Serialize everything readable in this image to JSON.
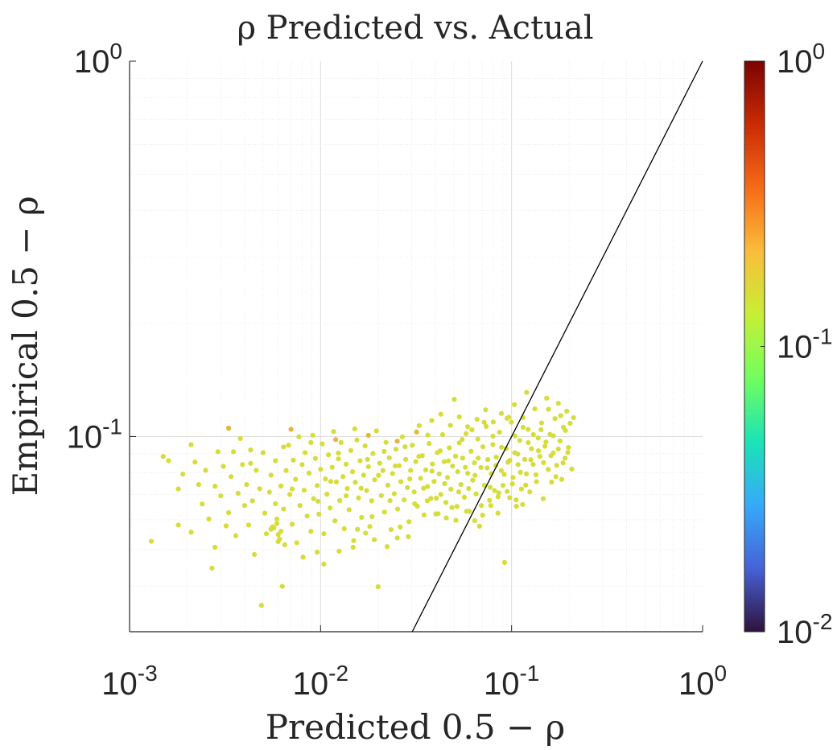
{
  "chart_data": {
    "type": "scatter",
    "title": "ρ Predicted vs. Actual",
    "xlabel": "Predicted 0.5 − ρ",
    "ylabel": "Empirical 0.5 − ρ",
    "x_scale": "log",
    "y_scale": "log",
    "xlim": [
      0.001,
      1
    ],
    "ylim": [
      0.0302,
      1
    ],
    "grid": true,
    "minor_grid": true,
    "x_ticks": [
      {
        "value": 0.001,
        "base": "10",
        "exp": "-3"
      },
      {
        "value": 0.01,
        "base": "10",
        "exp": "-2"
      },
      {
        "value": 0.1,
        "base": "10",
        "exp": "-1"
      },
      {
        "value": 1,
        "base": "10",
        "exp": "0"
      }
    ],
    "y_ticks": [
      {
        "value": 0.1,
        "base": "10",
        "exp": "-1"
      },
      {
        "value": 1,
        "base": "10",
        "exp": "0"
      }
    ],
    "reference_line": {
      "type": "y=x",
      "color": "#000000"
    },
    "point_color": "#d6dd3a",
    "point_color_alt": "#e8b43a",
    "colorbar": {
      "colormap": "turbo",
      "scale": "log",
      "range": [
        0.01,
        1
      ],
      "ticks": [
        {
          "value": 1,
          "base": "10",
          "exp": "0"
        },
        {
          "value": 0.1,
          "base": "10",
          "exp": "-1"
        },
        {
          "value": 0.01,
          "base": "10",
          "exp": "-2"
        }
      ],
      "stops": [
        "#30123b",
        "#4662d7",
        "#36aaf9",
        "#1ae4b6",
        "#72fe5e",
        "#c7ef34",
        "#fabd3a",
        "#f66b19",
        "#cb2a04",
        "#7a0403"
      ]
    },
    "points": [
      [
        0.0013,
        0.0526
      ],
      [
        0.0015,
        0.0885
      ],
      [
        0.0016,
        0.0862
      ],
      [
        0.0018,
        0.0725
      ],
      [
        0.0018,
        0.0581
      ],
      [
        0.0019,
        0.0794
      ],
      [
        0.0021,
        0.0951
      ],
      [
        0.0021,
        0.0556
      ],
      [
        0.0022,
        0.0855
      ],
      [
        0.0023,
        0.0745
      ],
      [
        0.0024,
        0.0661
      ],
      [
        0.0025,
        0.0813
      ],
      [
        0.0026,
        0.0603
      ],
      [
        0.0027,
        0.0446
      ],
      [
        0.0028,
        0.0507
      ],
      [
        0.0028,
        0.0737
      ],
      [
        0.0029,
        0.0911
      ],
      [
        0.003,
        0.0695
      ],
      [
        0.0031,
        0.0833
      ],
      [
        0.0032,
        0.0578
      ],
      [
        0.0033,
        0.1051
      ],
      [
        0.0033,
        0.0627
      ],
      [
        0.0034,
        0.0782
      ],
      [
        0.0035,
        0.0911
      ],
      [
        0.0036,
        0.0544
      ],
      [
        0.0037,
        0.0706
      ],
      [
        0.0038,
        0.0988
      ],
      [
        0.0039,
        0.0842
      ],
      [
        0.004,
        0.0655
      ],
      [
        0.0041,
        0.0745
      ],
      [
        0.0042,
        0.0581
      ],
      [
        0.0043,
        0.0921
      ],
      [
        0.0044,
        0.0674
      ],
      [
        0.0045,
        0.0485
      ],
      [
        0.0046,
        0.0813
      ],
      [
        0.0048,
        0.0726
      ],
      [
        0.0049,
        0.0355
      ],
      [
        0.005,
        0.0906
      ],
      [
        0.0051,
        0.0625
      ],
      [
        0.0052,
        0.0551
      ],
      [
        0.0054,
        0.0711
      ],
      [
        0.0055,
        0.0789
      ],
      [
        0.0056,
        0.0575
      ],
      [
        0.0058,
        0.0862
      ],
      [
        0.0059,
        0.0603
      ],
      [
        0.006,
        0.0525
      ],
      [
        0.0062,
        0.0738
      ],
      [
        0.0063,
        0.0399
      ],
      [
        0.0064,
        0.0641
      ],
      [
        0.0066,
        0.0812
      ],
      [
        0.0068,
        0.0948
      ],
      [
        0.0069,
        0.0701
      ],
      [
        0.0071,
        0.0584
      ],
      [
        0.0072,
        0.0865
      ],
      [
        0.0074,
        0.0769
      ],
      [
        0.0075,
        0.0521
      ],
      [
        0.0077,
        0.0998
      ],
      [
        0.0078,
        0.0655
      ],
      [
        0.008,
        0.0842
      ],
      [
        0.0082,
        0.0719
      ],
      [
        0.0083,
        0.0906
      ],
      [
        0.0085,
        0.0614
      ],
      [
        0.0087,
        0.0799
      ],
      [
        0.0089,
        0.0559
      ],
      [
        0.0091,
        0.1008
      ],
      [
        0.0092,
        0.0683
      ],
      [
        0.0094,
        0.0874
      ],
      [
        0.0096,
        0.074
      ],
      [
        0.0098,
        0.0621
      ],
      [
        0.01,
        0.0818
      ],
      [
        0.0102,
        0.0956
      ],
      [
        0.0104,
        0.0551
      ],
      [
        0.0106,
        0.0771
      ],
      [
        0.0108,
        0.0702
      ],
      [
        0.011,
        0.0894
      ],
      [
        0.0112,
        0.0645
      ],
      [
        0.0115,
        0.0828
      ],
      [
        0.0117,
        0.1031
      ],
      [
        0.0119,
        0.0596
      ],
      [
        0.0121,
        0.0757
      ],
      [
        0.0124,
        0.0872
      ],
      [
        0.0126,
        0.0675
      ],
      [
        0.0128,
        0.0964
      ],
      [
        0.0131,
        0.0782
      ],
      [
        0.0133,
        0.0568
      ],
      [
        0.0136,
        0.0844
      ],
      [
        0.0138,
        0.0727
      ],
      [
        0.0141,
        0.0638
      ],
      [
        0.0144,
        0.0918
      ],
      [
        0.0147,
        0.0806
      ],
      [
        0.0149,
        0.0528
      ],
      [
        0.0152,
        0.0755
      ],
      [
        0.0155,
        0.0979
      ],
      [
        0.0158,
        0.0686
      ],
      [
        0.0161,
        0.0862
      ],
      [
        0.0164,
        0.0609
      ],
      [
        0.0168,
        0.0789
      ],
      [
        0.0171,
        0.0944
      ],
      [
        0.0174,
        0.0718
      ],
      [
        0.0178,
        0.0831
      ],
      [
        0.0181,
        0.0576
      ],
      [
        0.0185,
        0.0674
      ],
      [
        0.0188,
        0.0901
      ],
      [
        0.0192,
        0.0767
      ],
      [
        0.0196,
        0.1035
      ],
      [
        0.02,
        0.0398
      ],
      [
        0.0204,
        0.0849
      ],
      [
        0.0208,
        0.0696
      ],
      [
        0.0212,
        0.0812
      ],
      [
        0.0216,
        0.0629
      ],
      [
        0.022,
        0.0965
      ],
      [
        0.0225,
        0.0742
      ],
      [
        0.0229,
        0.0878
      ],
      [
        0.0234,
        0.0565
      ],
      [
        0.0238,
        0.0797
      ],
      [
        0.0243,
        0.0704
      ],
      [
        0.0248,
        0.0925
      ],
      [
        0.0253,
        0.0641
      ],
      [
        0.0258,
        0.0836
      ],
      [
        0.0263,
        0.0758
      ],
      [
        0.0268,
        0.0998
      ],
      [
        0.0274,
        0.0678
      ],
      [
        0.0279,
        0.0869
      ],
      [
        0.0285,
        0.0731
      ],
      [
        0.029,
        0.0593
      ],
      [
        0.0296,
        0.0812
      ],
      [
        0.0302,
        0.0948
      ],
      [
        0.0309,
        0.0712
      ],
      [
        0.0315,
        0.0857
      ],
      [
        0.0321,
        0.0652
      ],
      [
        0.0328,
        0.1069
      ],
      [
        0.0334,
        0.0774
      ],
      [
        0.0341,
        0.0889
      ],
      [
        0.0348,
        0.0618
      ],
      [
        0.0355,
        0.0815
      ],
      [
        0.0363,
        0.0736
      ],
      [
        0.037,
        0.0958
      ],
      [
        0.0378,
        0.0684
      ],
      [
        0.0385,
        0.0845
      ],
      [
        0.0393,
        0.0759
      ],
      [
        0.0401,
        0.0622
      ],
      [
        0.0409,
        0.0906
      ],
      [
        0.0418,
        0.0795
      ],
      [
        0.0426,
        0.0701
      ],
      [
        0.0435,
        0.1012
      ],
      [
        0.0444,
        0.0857
      ],
      [
        0.0453,
        0.0667
      ],
      [
        0.0462,
        0.0778
      ],
      [
        0.0472,
        0.0933
      ],
      [
        0.0481,
        0.0724
      ],
      [
        0.0491,
        0.0834
      ],
      [
        0.0501,
        0.1256
      ],
      [
        0.0511,
        0.0598
      ],
      [
        0.0522,
        0.0806
      ],
      [
        0.0532,
        0.0962
      ],
      [
        0.0543,
        0.0745
      ],
      [
        0.0554,
        0.0876
      ],
      [
        0.0566,
        0.0689
      ],
      [
        0.0577,
        0.1018
      ],
      [
        0.0589,
        0.0798
      ],
      [
        0.0601,
        0.0632
      ],
      [
        0.0613,
        0.0914
      ],
      [
        0.0626,
        0.0765
      ],
      [
        0.0639,
        0.0851
      ],
      [
        0.0652,
        0.0703
      ],
      [
        0.0665,
        0.0985
      ],
      [
        0.0679,
        0.0577
      ],
      [
        0.0692,
        0.0827
      ],
      [
        0.0707,
        0.0939
      ],
      [
        0.0721,
        0.0742
      ],
      [
        0.0736,
        0.1064
      ],
      [
        0.0751,
        0.0868
      ],
      [
        0.0766,
        0.0676
      ],
      [
        0.0782,
        0.0796
      ],
      [
        0.0798,
        0.0952
      ],
      [
        0.0814,
        0.0718
      ],
      [
        0.0831,
        0.0881
      ],
      [
        0.0848,
        0.0625
      ],
      [
        0.0865,
        0.1027
      ],
      [
        0.0883,
        0.0812
      ],
      [
        0.0901,
        0.0741
      ],
      [
        0.0919,
        0.0462
      ],
      [
        0.0938,
        0.0929
      ],
      [
        0.0957,
        0.0854
      ],
      [
        0.0977,
        0.0687
      ],
      [
        0.0997,
        0.1092
      ],
      [
        0.1017,
        0.0778
      ],
      [
        0.1038,
        0.0905
      ],
      [
        0.1059,
        0.0652
      ],
      [
        0.1081,
        0.0842
      ],
      [
        0.1103,
        0.0976
      ],
      [
        0.1126,
        0.0725
      ],
      [
        0.1149,
        0.1124
      ],
      [
        0.1172,
        0.0869
      ],
      [
        0.1196,
        0.0795
      ],
      [
        0.122,
        0.1045
      ],
      [
        0.1245,
        0.0712
      ],
      [
        0.1271,
        0.0928
      ],
      [
        0.1297,
        0.0843
      ],
      [
        0.1323,
        0.1185
      ],
      [
        0.135,
        0.0758
      ],
      [
        0.1378,
        0.0991
      ],
      [
        0.1406,
        0.0885
      ],
      [
        0.1435,
        0.1087
      ],
      [
        0.1464,
        0.0683
      ],
      [
        0.1494,
        0.0942
      ],
      [
        0.1525,
        0.1265
      ],
      [
        0.1556,
        0.0817
      ],
      [
        0.1588,
        0.1014
      ],
      [
        0.162,
        0.0756
      ],
      [
        0.1653,
        0.0904
      ],
      [
        0.1687,
        0.1116
      ],
      [
        0.1722,
        0.0838
      ],
      [
        0.1757,
        0.1226
      ],
      [
        0.1793,
        0.0973
      ],
      [
        0.183,
        0.0769
      ],
      [
        0.1867,
        0.1059
      ],
      [
        0.1905,
        0.0876
      ],
      [
        0.1944,
        0.1168
      ],
      [
        0.1984,
        0.0935
      ],
      [
        0.2025,
        0.1084
      ],
      [
        0.2067,
        0.0819
      ],
      [
        0.2109,
        0.1123
      ],
      [
        0.0043,
        0.0848
      ],
      [
        0.0058,
        0.0662
      ],
      [
        0.0064,
        0.0938
      ],
      [
        0.0071,
        0.0725
      ],
      [
        0.0089,
        0.0964
      ],
      [
        0.0097,
        0.0672
      ],
      [
        0.0113,
        0.0759
      ],
      [
        0.0124,
        0.0903
      ],
      [
        0.0136,
        0.0695
      ],
      [
        0.0151,
        0.1048
      ],
      [
        0.0163,
        0.0728
      ],
      [
        0.0176,
        0.0869
      ],
      [
        0.0186,
        0.0612
      ],
      [
        0.0201,
        0.0788
      ],
      [
        0.0215,
        0.0913
      ],
      [
        0.0231,
        0.0675
      ],
      [
        0.0246,
        0.0835
      ],
      [
        0.0261,
        0.0574
      ],
      [
        0.0277,
        0.0939
      ],
      [
        0.0293,
        0.0771
      ],
      [
        0.0311,
        0.0662
      ],
      [
        0.0327,
        0.0885
      ],
      [
        0.0346,
        0.0728
      ],
      [
        0.0364,
        0.1009
      ],
      [
        0.0383,
        0.0809
      ],
      [
        0.0404,
        0.0685
      ],
      [
        0.0423,
        0.0916
      ],
      [
        0.0446,
        0.0749
      ],
      [
        0.0467,
        0.0861
      ],
      [
        0.0487,
        0.0647
      ],
      [
        0.0509,
        0.0886
      ],
      [
        0.0529,
        0.0712
      ],
      [
        0.0551,
        0.0982
      ],
      [
        0.0573,
        0.0828
      ],
      [
        0.0596,
        0.0727
      ],
      [
        0.062,
        0.1042
      ],
      [
        0.0643,
        0.0788
      ],
      [
        0.0668,
        0.0876
      ],
      [
        0.0694,
        0.0655
      ],
      [
        0.0719,
        0.1091
      ],
      [
        0.0745,
        0.0825
      ],
      [
        0.0772,
        0.0732
      ],
      [
        0.0799,
        0.1002
      ],
      [
        0.0827,
        0.0837
      ],
      [
        0.0856,
        0.0708
      ],
      [
        0.0885,
        0.0936
      ],
      [
        0.0915,
        0.0793
      ],
      [
        0.0946,
        0.1118
      ],
      [
        0.0978,
        0.0864
      ],
      [
        0.101,
        0.0748
      ],
      [
        0.1043,
        0.1003
      ],
      [
        0.1077,
        0.0898
      ],
      [
        0.1112,
        0.0803
      ],
      [
        0.1148,
        0.1058
      ],
      [
        0.1185,
        0.0742
      ],
      [
        0.1222,
        0.0963
      ],
      [
        0.1261,
        0.0867
      ],
      [
        0.1301,
        0.1012
      ],
      [
        0.1341,
        0.0791
      ],
      [
        0.1383,
        0.0916
      ],
      [
        0.1426,
        0.1043
      ],
      [
        0.147,
        0.0852
      ],
      [
        0.1514,
        0.0967
      ],
      [
        0.156,
        0.1182
      ],
      [
        0.1607,
        0.0889
      ],
      [
        0.1655,
        0.1005
      ],
      [
        0.1705,
        0.0782
      ],
      [
        0.1755,
        0.0926
      ],
      [
        0.1807,
        0.1137
      ],
      [
        0.186,
        0.0851
      ],
      [
        0.1914,
        0.1038
      ],
      [
        0.197,
        0.0907
      ],
      [
        0.0362,
        0.0674
      ],
      [
        0.0412,
        0.0623
      ],
      [
        0.0455,
        0.0607
      ],
      [
        0.0518,
        0.0651
      ],
      [
        0.0581,
        0.0632
      ],
      [
        0.0641,
        0.0597
      ],
      [
        0.0705,
        0.0617
      ],
      [
        0.0778,
        0.0655
      ],
      [
        0.0849,
        0.0691
      ],
      [
        0.0948,
        0.0714
      ],
      [
        0.1056,
        0.0678
      ],
      [
        0.1143,
        0.0659
      ],
      [
        0.0382,
        0.1103
      ],
      [
        0.0426,
        0.1147
      ],
      [
        0.0478,
        0.1071
      ],
      [
        0.0532,
        0.1128
      ],
      [
        0.0589,
        0.1062
      ],
      [
        0.0659,
        0.1112
      ],
      [
        0.0731,
        0.1178
      ],
      [
        0.0802,
        0.1093
      ],
      [
        0.0884,
        0.1152
      ],
      [
        0.0965,
        0.1125
      ],
      [
        0.1034,
        0.1216
      ],
      [
        0.1199,
        0.1311
      ],
      [
        0.0156,
        0.0566
      ],
      [
        0.0172,
        0.0553
      ],
      [
        0.0191,
        0.0531
      ],
      [
        0.0223,
        0.0509
      ],
      [
        0.0252,
        0.0537
      ],
      [
        0.0288,
        0.0541
      ],
      [
        0.0065,
        0.0515
      ],
      [
        0.0081,
        0.0477
      ],
      [
        0.0096,
        0.0492
      ],
      [
        0.0104,
        0.0457
      ],
      [
        0.0125,
        0.0495
      ],
      [
        0.0148,
        0.0507
      ],
      [
        0.006,
        0.0548
      ],
      [
        0.0057,
        0.0571
      ],
      [
        0.0062,
        0.0559
      ],
      [
        0.0061,
        0.0533
      ],
      [
        0.0055,
        0.0566
      ],
      [
        0.0059,
        0.0586
      ]
    ],
    "points_alt": [
      [
        0.0033,
        0.1053
      ],
      [
        0.007,
        0.1045
      ],
      [
        0.012,
        0.0981
      ],
      [
        0.0178,
        0.1007
      ],
      [
        0.0252,
        0.0972
      ],
      [
        0.0318,
        0.1028
      ]
    ]
  }
}
